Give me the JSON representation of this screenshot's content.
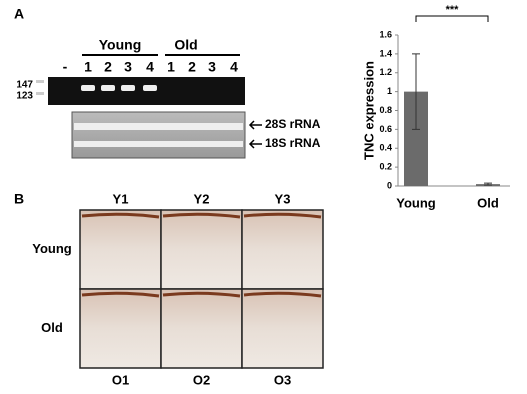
{
  "panel_labels": [
    "A",
    "B"
  ],
  "gel": {
    "marker_labels": [
      "147",
      "123"
    ],
    "lane_labels": [
      "-",
      "1",
      "2",
      "3",
      "4",
      "1",
      "2",
      "3",
      "4"
    ],
    "groups": [
      "Young",
      "Old"
    ],
    "rrna_labels": [
      "28S rRNA",
      "18S rRNA"
    ]
  },
  "chart_data": {
    "type": "bar",
    "y_label": "TNC expression",
    "categories": [
      "Young",
      "Old"
    ],
    "values": [
      1,
      0.02
    ],
    "errors": [
      0.4,
      0.01
    ],
    "color": "#6b6b6b",
    "ylim": [
      0,
      1.6
    ],
    "yticks": [
      0,
      0.2,
      0.4,
      0.6,
      0.8,
      1,
      1.2,
      1.4,
      1.6
    ],
    "significance": "***"
  },
  "histology": {
    "column_labels": [
      "Y1",
      "Y2",
      "Y3"
    ],
    "row_labels": [
      "Young",
      "Old"
    ],
    "bottom_labels": [
      "O1",
      "O2",
      "O3"
    ]
  }
}
